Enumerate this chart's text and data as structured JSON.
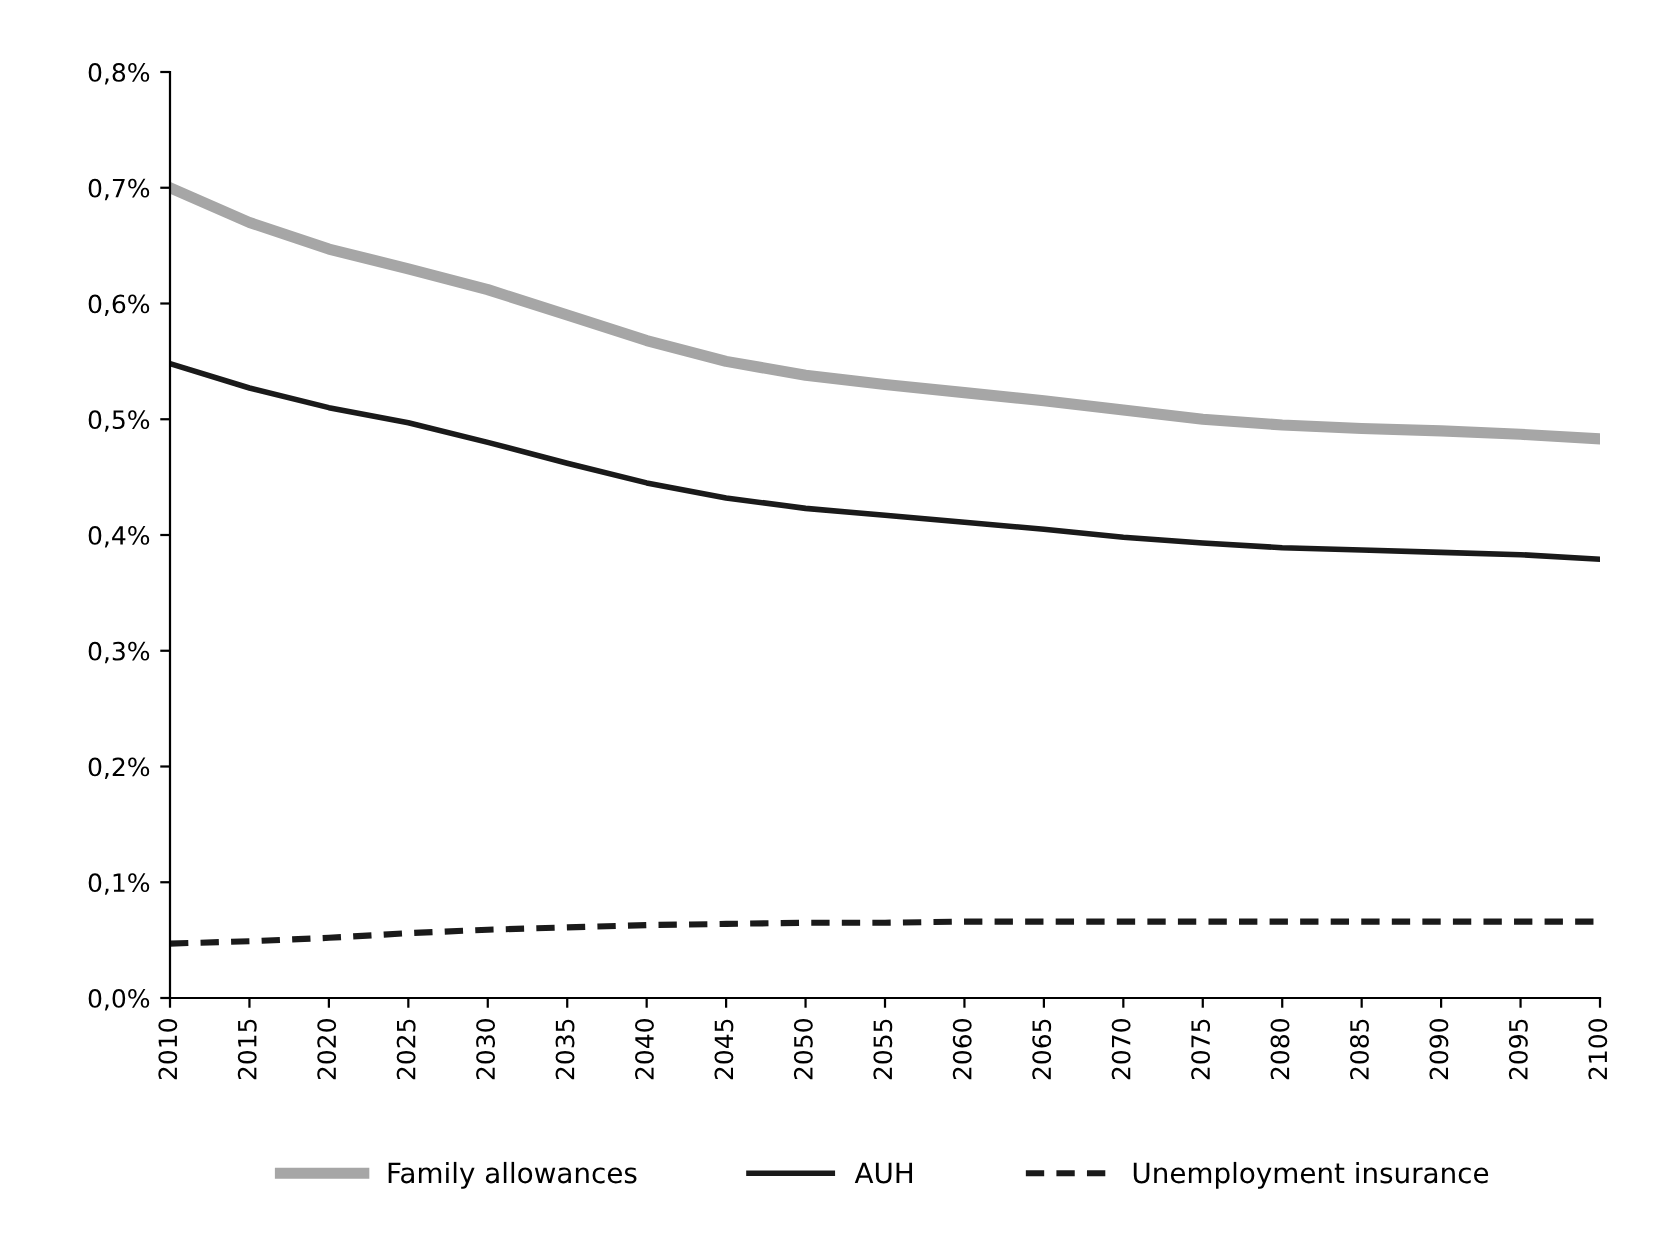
{
  "chart_data": {
    "type": "line",
    "x": [
      2010,
      2015,
      2020,
      2025,
      2030,
      2035,
      2040,
      2045,
      2050,
      2055,
      2060,
      2065,
      2070,
      2075,
      2080,
      2085,
      2090,
      2095,
      2100
    ],
    "series": [
      {
        "name": "Family allowances",
        "color": "#a6a6a6",
        "line_style": "solid",
        "values": [
          0.7,
          0.67,
          0.647,
          0.63,
          0.612,
          0.59,
          0.568,
          0.55,
          0.538,
          0.53,
          0.523,
          0.516,
          0.508,
          0.5,
          0.495,
          0.492,
          0.49,
          0.487,
          0.483
        ]
      },
      {
        "name": "AUH",
        "color": "#1a1a1a",
        "line_style": "solid",
        "values": [
          0.548,
          0.527,
          0.51,
          0.497,
          0.48,
          0.462,
          0.445,
          0.432,
          0.423,
          0.417,
          0.411,
          0.405,
          0.398,
          0.393,
          0.389,
          0.387,
          0.385,
          0.383,
          0.379
        ]
      },
      {
        "name": "Unemployment insurance",
        "color": "#1a1a1a",
        "line_style": "dashed",
        "values": [
          0.047,
          0.049,
          0.052,
          0.056,
          0.059,
          0.061,
          0.063,
          0.064,
          0.065,
          0.065,
          0.066,
          0.066,
          0.066,
          0.066,
          0.066,
          0.066,
          0.066,
          0.066,
          0.066
        ]
      }
    ],
    "xlim": [
      2010,
      2100
    ],
    "xticks": [
      2010,
      2015,
      2020,
      2025,
      2030,
      2035,
      2040,
      2045,
      2050,
      2055,
      2060,
      2065,
      2070,
      2075,
      2080,
      2085,
      2090,
      2095,
      2100
    ],
    "ylim": [
      0,
      0.8
    ],
    "yticks": [
      {
        "value": 0,
        "label": "0,0%"
      },
      {
        "value": 0.1,
        "label": "0,1%"
      },
      {
        "value": 0.2,
        "label": "0,2%"
      },
      {
        "value": 0.3,
        "label": "0,3%"
      },
      {
        "value": 0.4,
        "label": "0,4%"
      },
      {
        "value": 0.5,
        "label": "0,5%"
      },
      {
        "value": 0.6,
        "label": "0,6%"
      },
      {
        "value": 0.7,
        "label": "0,7%"
      },
      {
        "value": 0.8,
        "label": "0,8%"
      }
    ],
    "grid": false,
    "legend": "bottom",
    "marker": "none"
  }
}
